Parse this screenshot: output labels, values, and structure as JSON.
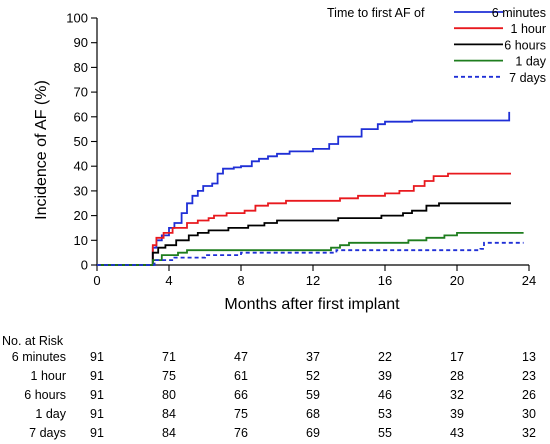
{
  "chart_data": {
    "type": "line",
    "title": "",
    "xlabel": "Months after first implant",
    "ylabel": "Incidence of AF (%)",
    "xlim": [
      0,
      24
    ],
    "ylim": [
      0,
      100
    ],
    "x_ticks": [
      0,
      4,
      8,
      12,
      16,
      20,
      24
    ],
    "y_ticks": [
      0,
      10,
      20,
      30,
      40,
      50,
      60,
      70,
      80,
      90,
      100
    ],
    "grid": false,
    "legend_title": "Time to first AF of",
    "legend_position": "top-right",
    "series": [
      {
        "name": "6 minutes",
        "color": "#1f2fd6",
        "dashed": false,
        "points": [
          [
            0,
            0
          ],
          [
            3,
            0
          ],
          [
            3.1,
            7
          ],
          [
            3.3,
            10
          ],
          [
            3.6,
            12
          ],
          [
            4,
            15
          ],
          [
            4.3,
            17
          ],
          [
            4.7,
            21
          ],
          [
            5,
            25
          ],
          [
            5.3,
            28
          ],
          [
            5.6,
            30
          ],
          [
            5.9,
            32
          ],
          [
            6.4,
            33
          ],
          [
            6.7,
            37
          ],
          [
            7,
            39
          ],
          [
            7.6,
            39.5
          ],
          [
            8,
            40
          ],
          [
            8.6,
            42
          ],
          [
            9,
            43
          ],
          [
            9.5,
            44
          ],
          [
            10,
            45
          ],
          [
            10.7,
            46
          ],
          [
            11.5,
            46
          ],
          [
            12,
            47
          ],
          [
            12.9,
            49
          ],
          [
            13.4,
            52
          ],
          [
            14.7,
            55
          ],
          [
            15.6,
            57
          ],
          [
            16,
            58
          ],
          [
            17.5,
            58.5
          ],
          [
            19,
            58.5
          ],
          [
            21,
            58.5
          ],
          [
            22.9,
            59
          ],
          [
            22.9,
            62
          ]
        ]
      },
      {
        "name": "1 hour",
        "color": "#e8191e",
        "dashed": false,
        "points": [
          [
            0,
            0
          ],
          [
            3,
            0
          ],
          [
            3.1,
            8
          ],
          [
            3.3,
            11
          ],
          [
            3.7,
            13
          ],
          [
            4.2,
            15
          ],
          [
            5,
            17
          ],
          [
            5.6,
            18
          ],
          [
            6.2,
            19
          ],
          [
            6.5,
            20
          ],
          [
            7.2,
            21
          ],
          [
            8.2,
            22
          ],
          [
            8.8,
            24
          ],
          [
            9.5,
            25
          ],
          [
            10.5,
            26
          ],
          [
            12,
            26
          ],
          [
            13,
            26
          ],
          [
            13.5,
            27
          ],
          [
            14.5,
            28
          ],
          [
            16,
            29
          ],
          [
            16.8,
            30
          ],
          [
            17.6,
            32
          ],
          [
            18.2,
            34
          ],
          [
            18.7,
            36
          ],
          [
            19.5,
            37
          ],
          [
            23,
            37
          ]
        ]
      },
      {
        "name": "6 hours",
        "color": "#000000",
        "dashed": false,
        "points": [
          [
            0,
            0
          ],
          [
            3,
            0
          ],
          [
            3.1,
            5
          ],
          [
            3.4,
            7
          ],
          [
            3.8,
            8
          ],
          [
            4.4,
            10
          ],
          [
            5.1,
            12
          ],
          [
            5.6,
            13
          ],
          [
            6.2,
            14
          ],
          [
            7.3,
            15
          ],
          [
            8.4,
            16
          ],
          [
            9.3,
            17
          ],
          [
            10,
            18
          ],
          [
            11.5,
            18
          ],
          [
            13,
            18
          ],
          [
            13.4,
            19
          ],
          [
            14.5,
            19
          ],
          [
            15.8,
            20
          ],
          [
            17,
            21
          ],
          [
            17.5,
            22
          ],
          [
            18.3,
            24
          ],
          [
            19,
            25
          ],
          [
            23,
            25
          ]
        ]
      },
      {
        "name": "1 day",
        "color": "#1e7d1e",
        "dashed": false,
        "points": [
          [
            0,
            0
          ],
          [
            3,
            0
          ],
          [
            3.1,
            2
          ],
          [
            3.6,
            4
          ],
          [
            4.5,
            5
          ],
          [
            5,
            6
          ],
          [
            7,
            6
          ],
          [
            9,
            6
          ],
          [
            12,
            6
          ],
          [
            13,
            7
          ],
          [
            13.5,
            8
          ],
          [
            14,
            9
          ],
          [
            17,
            9
          ],
          [
            17.3,
            10
          ],
          [
            18.3,
            11
          ],
          [
            19.3,
            12
          ],
          [
            20,
            13
          ],
          [
            23.7,
            13
          ]
        ]
      },
      {
        "name": "7 days",
        "color": "#1f2fd6",
        "dashed": true,
        "points": [
          [
            0,
            0
          ],
          [
            3,
            0
          ],
          [
            3.2,
            2
          ],
          [
            4.3,
            3
          ],
          [
            6,
            4
          ],
          [
            8,
            5
          ],
          [
            11,
            5
          ],
          [
            13.3,
            6
          ],
          [
            16,
            6
          ],
          [
            21.3,
            6.5
          ],
          [
            21.5,
            9
          ],
          [
            23.7,
            9
          ]
        ]
      }
    ]
  },
  "risk_table": {
    "title": "No. at Risk",
    "months": [
      0,
      4,
      8,
      12,
      16,
      20,
      24
    ],
    "rows": [
      {
        "label": "6 minutes",
        "values": [
          91,
          71,
          47,
          37,
          22,
          17,
          13
        ]
      },
      {
        "label": "1 hour",
        "values": [
          91,
          75,
          61,
          52,
          39,
          28,
          23
        ]
      },
      {
        "label": "6 hours",
        "values": [
          91,
          80,
          66,
          59,
          46,
          32,
          26
        ]
      },
      {
        "label": "1 day",
        "values": [
          91,
          84,
          75,
          68,
          53,
          39,
          30
        ]
      },
      {
        "label": "7 days",
        "values": [
          91,
          84,
          76,
          69,
          55,
          43,
          32
        ]
      }
    ]
  }
}
